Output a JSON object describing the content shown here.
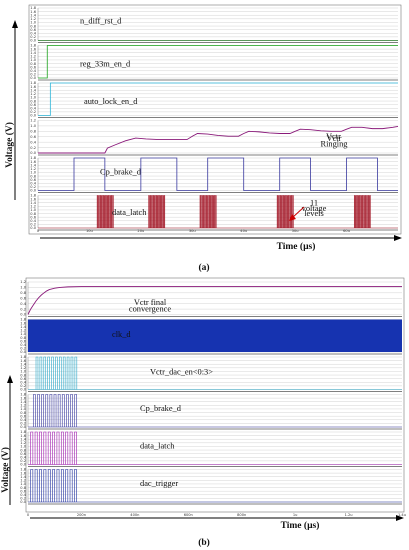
{
  "chart_data": [
    {
      "type": "line",
      "panel": "(a)",
      "xlabel": "Time (µs)",
      "ylabel": "Voltage (V)",
      "xlim": [
        0,
        70
      ],
      "x_ticks": [
        "0",
        "10u",
        "20u",
        "30u",
        "40u",
        "50u",
        "60u"
      ],
      "annotations": [
        "Vctr",
        "Ringing",
        "11",
        "voltage",
        "levels"
      ],
      "series": [
        {
          "name": "n_diff_rst_d",
          "color": "#2a7a2a",
          "kind": "step",
          "ylim": [
            0,
            1.8
          ],
          "y_ticks": [
            "1.8",
            "1.6",
            "1.4",
            "1.2",
            "1.0",
            "0.8",
            "0.6",
            "0.4",
            "0.2",
            "0.0"
          ],
          "x": [
            0,
            70
          ],
          "y": [
            0,
            0
          ]
        },
        {
          "name": "reg_33m_en_d",
          "color": "#19a319",
          "kind": "step",
          "ylim": [
            0,
            1.8
          ],
          "y_ticks": [
            "1.8",
            "1.6",
            "1.4",
            "1.2",
            "1.0",
            "0.8",
            "0.6",
            "0.4",
            "0.2",
            "0.0"
          ],
          "x": [
            0,
            1.8,
            1.8,
            70
          ],
          "y": [
            0,
            0,
            1.8,
            1.8
          ]
        },
        {
          "name": "auto_lock_en_d",
          "color": "#2bb5d8",
          "kind": "step",
          "ylim": [
            0,
            1.8
          ],
          "y_ticks": [
            "1.8",
            "1.6",
            "1.4",
            "1.2",
            "1.0",
            "0.8",
            "0.6",
            "0.4",
            "0.2",
            "0.0"
          ],
          "x": [
            0,
            2.4,
            2.4,
            70
          ],
          "y": [
            0,
            0,
            1.8,
            1.8
          ]
        },
        {
          "name": "Vctr",
          "color": "#8a1a7a",
          "kind": "line",
          "ylim": [
            0,
            1.2
          ],
          "y_ticks": [
            "1.2",
            "1.0",
            "0.8",
            "0.6",
            "0.4",
            "0.2",
            "0.0"
          ],
          "x": [
            0,
            13,
            13.5,
            15,
            17,
            19,
            21,
            23,
            25,
            27,
            29,
            30,
            31,
            33,
            35,
            37,
            39,
            40,
            41,
            43,
            45,
            47,
            49,
            50,
            51,
            53,
            55,
            57,
            59,
            60,
            61,
            63,
            65,
            67,
            69,
            70
          ],
          "y": [
            0.0,
            0.0,
            0.18,
            0.3,
            0.45,
            0.55,
            0.52,
            0.5,
            0.5,
            0.5,
            0.5,
            0.62,
            0.72,
            0.7,
            0.65,
            0.62,
            0.62,
            0.72,
            0.8,
            0.78,
            0.74,
            0.72,
            0.72,
            0.8,
            0.88,
            0.86,
            0.82,
            0.8,
            0.8,
            0.88,
            0.95,
            0.95,
            0.9,
            0.9,
            0.95,
            0.98
          ]
        },
        {
          "name": "Cp_brake_d",
          "color": "#3a3aa0",
          "kind": "step",
          "ylim": [
            0,
            1.8
          ],
          "y_ticks": [
            "1.8",
            "1.6",
            "1.4",
            "1.2",
            "1.0",
            "0.8",
            "0.6",
            "0.4",
            "0.2",
            "0.0"
          ],
          "x": [
            0,
            7,
            7,
            13,
            13,
            20,
            20,
            27,
            27,
            33,
            33,
            40,
            40,
            47,
            47,
            53,
            53,
            60,
            60,
            66,
            66,
            70
          ],
          "y": [
            0,
            0,
            1.8,
            1.8,
            0,
            0,
            1.8,
            1.8,
            0,
            0,
            1.8,
            1.8,
            0,
            0,
            1.8,
            1.8,
            0,
            0,
            1.8,
            1.8,
            0,
            0
          ]
        },
        {
          "name": "data_latch",
          "color": "#a01020",
          "kind": "pulses",
          "ylim": [
            0,
            1.8
          ],
          "y_ticks": [
            "1.8",
            "1.6",
            "1.4",
            "1.2",
            "1.0",
            "0.8",
            "0.6",
            "0.4",
            "0.2",
            "0.0"
          ],
          "bursts": [
            [
              11.5,
              14.8
            ],
            [
              21.5,
              24.8
            ],
            [
              31.5,
              34.8
            ],
            [
              46.5,
              49.8
            ],
            [
              61.5,
              64.8
            ]
          ],
          "pulses_per_burst": 11,
          "high": 1.8
        }
      ]
    },
    {
      "type": "line",
      "panel": "(b)",
      "xlabel": "Time (µs)",
      "ylabel": "Voltage (V)",
      "xlim": [
        0,
        1.4
      ],
      "x_ticks": [
        "0",
        "200n",
        "400n",
        "600n",
        "800n",
        "1u",
        "1.2u",
        "1.4u"
      ],
      "annotations": [
        "Vctr final",
        "convergence"
      ],
      "series": [
        {
          "name": "Vctr",
          "color": "#8a1a7a",
          "kind": "line",
          "ylim": [
            0,
            1.2
          ],
          "y_ticks": [
            "1.2",
            "1.0",
            "0.8",
            "0.6",
            "0.4",
            "0.2",
            "0.0"
          ],
          "x": [
            0,
            0.01,
            0.02,
            0.03,
            0.04,
            0.05,
            0.06,
            0.07,
            0.08,
            0.1,
            0.12,
            0.15,
            0.2,
            1.4
          ],
          "y": [
            0.0,
            0.2,
            0.35,
            0.5,
            0.62,
            0.72,
            0.8,
            0.87,
            0.92,
            0.97,
            1.0,
            1.02,
            1.03,
            1.03
          ]
        },
        {
          "name": "clk_d",
          "color": "#1633b0",
          "kind": "fill",
          "ylim": [
            0,
            1.8
          ],
          "y_ticks": [
            "1.8",
            "1.6",
            "1.4",
            "1.2",
            "1.0",
            "0.8",
            "0.6",
            "0.4",
            "0.2",
            "0.0"
          ],
          "x": [
            0,
            1.4
          ],
          "y": [
            1.8,
            1.8
          ]
        },
        {
          "name": "Vctr_dac_en<0:3>",
          "color": "#2aa8c8",
          "kind": "pulses",
          "ylim": [
            0,
            1.8
          ],
          "y_ticks": [
            "1.8",
            "1.6",
            "1.4",
            "1.2",
            "1.0",
            "0.8",
            "0.6",
            "0.4",
            "0.2",
            "0.0"
          ],
          "bursts": [
            [
              0.03,
              0.19
            ]
          ],
          "pulses_per_burst": 11,
          "high": 1.8
        },
        {
          "name": "Cp_brake_d",
          "color": "#3a3aa0",
          "kind": "pulses",
          "ylim": [
            0,
            1.8
          ],
          "y_ticks": [
            "1.8",
            "1.6",
            "1.4",
            "1.2",
            "1.0",
            "0.8",
            "0.6",
            "0.4",
            "0.2",
            "0.0"
          ],
          "bursts": [
            [
              0.02,
              0.19
            ]
          ],
          "pulses_per_burst": 11,
          "high": 1.8
        },
        {
          "name": "data_latch",
          "color": "#a01ab0",
          "kind": "pulses",
          "ylim": [
            0,
            1.8
          ],
          "y_ticks": [
            "1.8",
            "1.6",
            "1.4",
            "1.2",
            "1.0",
            "0.8",
            "0.6",
            "0.4",
            "0.2",
            "0.0"
          ],
          "bursts": [
            [
              0.01,
              0.19
            ]
          ],
          "pulses_per_burst": 11,
          "high": 1.8
        },
        {
          "name": "dac_trigger",
          "color": "#2030a0",
          "kind": "pulses",
          "ylim": [
            0,
            1.8
          ],
          "y_ticks": [
            "1.8",
            "1.6",
            "1.4",
            "1.2",
            "1.0",
            "0.8",
            "0.6",
            "0.4",
            "0.2",
            "0.0"
          ],
          "bursts": [
            [
              0.01,
              0.19
            ]
          ],
          "pulses_per_burst": 11,
          "high": 1.8
        }
      ]
    }
  ]
}
